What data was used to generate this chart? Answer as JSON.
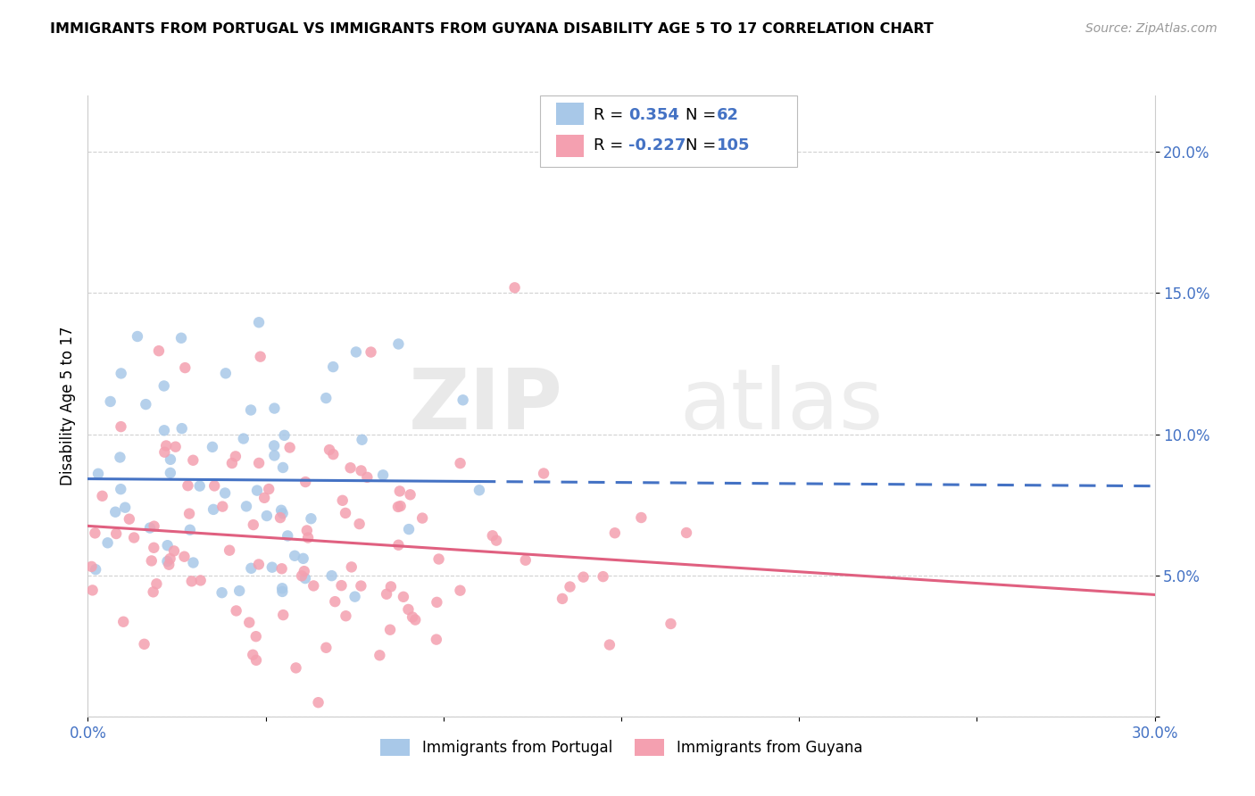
{
  "title": "IMMIGRANTS FROM PORTUGAL VS IMMIGRANTS FROM GUYANA DISABILITY AGE 5 TO 17 CORRELATION CHART",
  "source": "Source: ZipAtlas.com",
  "ylabel": "Disability Age 5 to 17",
  "xlim": [
    0.0,
    0.3
  ],
  "ylim": [
    0.0,
    0.22
  ],
  "portugal_R": 0.354,
  "portugal_N": 62,
  "guyana_R": -0.227,
  "guyana_N": 105,
  "portugal_color": "#a8c8e8",
  "guyana_color": "#f4a0b0",
  "trendline_portugal_color": "#4472c4",
  "trendline_guyana_color": "#e06080",
  "watermark_zip": "ZIP",
  "watermark_atlas": "atlas",
  "legend_portugal_label": "Immigrants from Portugal",
  "legend_guyana_label": "Immigrants from Guyana",
  "legend_text_black": "R = ",
  "legend_text_blue": "#4472c4",
  "title_fontsize": 11.5,
  "source_fontsize": 10,
  "axis_tick_color": "#4472c4",
  "grid_color": "#cccccc",
  "spine_color": "#cccccc"
}
